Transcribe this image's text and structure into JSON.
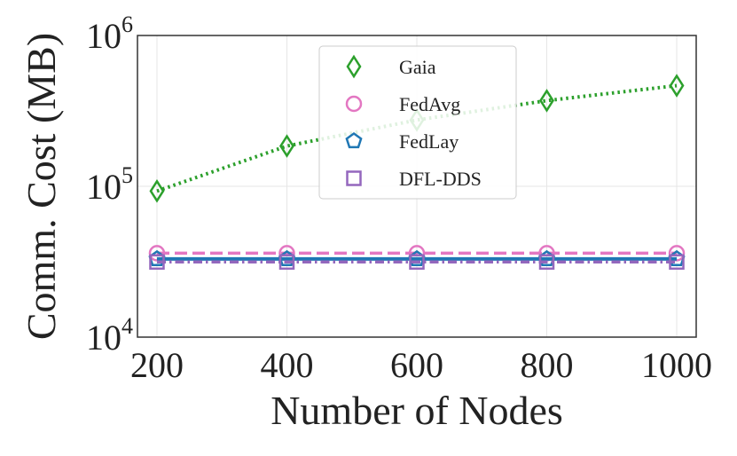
{
  "chart_data": {
    "type": "line",
    "title": "",
    "xlabel": "Number of Nodes",
    "ylabel": "Comm. Cost (MB)",
    "yscale": "log",
    "x": [
      200,
      400,
      600,
      800,
      1000
    ],
    "xlim": [
      170,
      1030
    ],
    "ylim": [
      10000,
      1000000
    ],
    "x_ticks": [
      "200",
      "400",
      "600",
      "800",
      "1000"
    ],
    "y_ticks": [
      {
        "value": 10000,
        "base": "10",
        "exp": "4"
      },
      {
        "value": 100000,
        "base": "10",
        "exp": "5"
      },
      {
        "value": 1000000,
        "base": "10",
        "exp": "6"
      }
    ],
    "grid": true,
    "legend_position": "top-center",
    "series": [
      {
        "name": "Gaia",
        "values": [
          93000,
          185000,
          275000,
          370000,
          465000
        ],
        "color": "#2ca02c",
        "marker": "diamond",
        "linestyle": "dotted"
      },
      {
        "name": "FedAvg",
        "values": [
          36000,
          36000,
          36000,
          36000,
          36000
        ],
        "color": "#e377c2",
        "marker": "circle",
        "linestyle": "dashed"
      },
      {
        "name": "FedLay",
        "values": [
          33000,
          33000,
          33000,
          33000,
          33000
        ],
        "color": "#1f77b4",
        "marker": "pentagon",
        "linestyle": "solid"
      },
      {
        "name": "DFL-DDS",
        "values": [
          31500,
          31500,
          31500,
          31500,
          31500
        ],
        "color": "#9467bd",
        "marker": "square",
        "linestyle": "dashdot"
      }
    ]
  }
}
